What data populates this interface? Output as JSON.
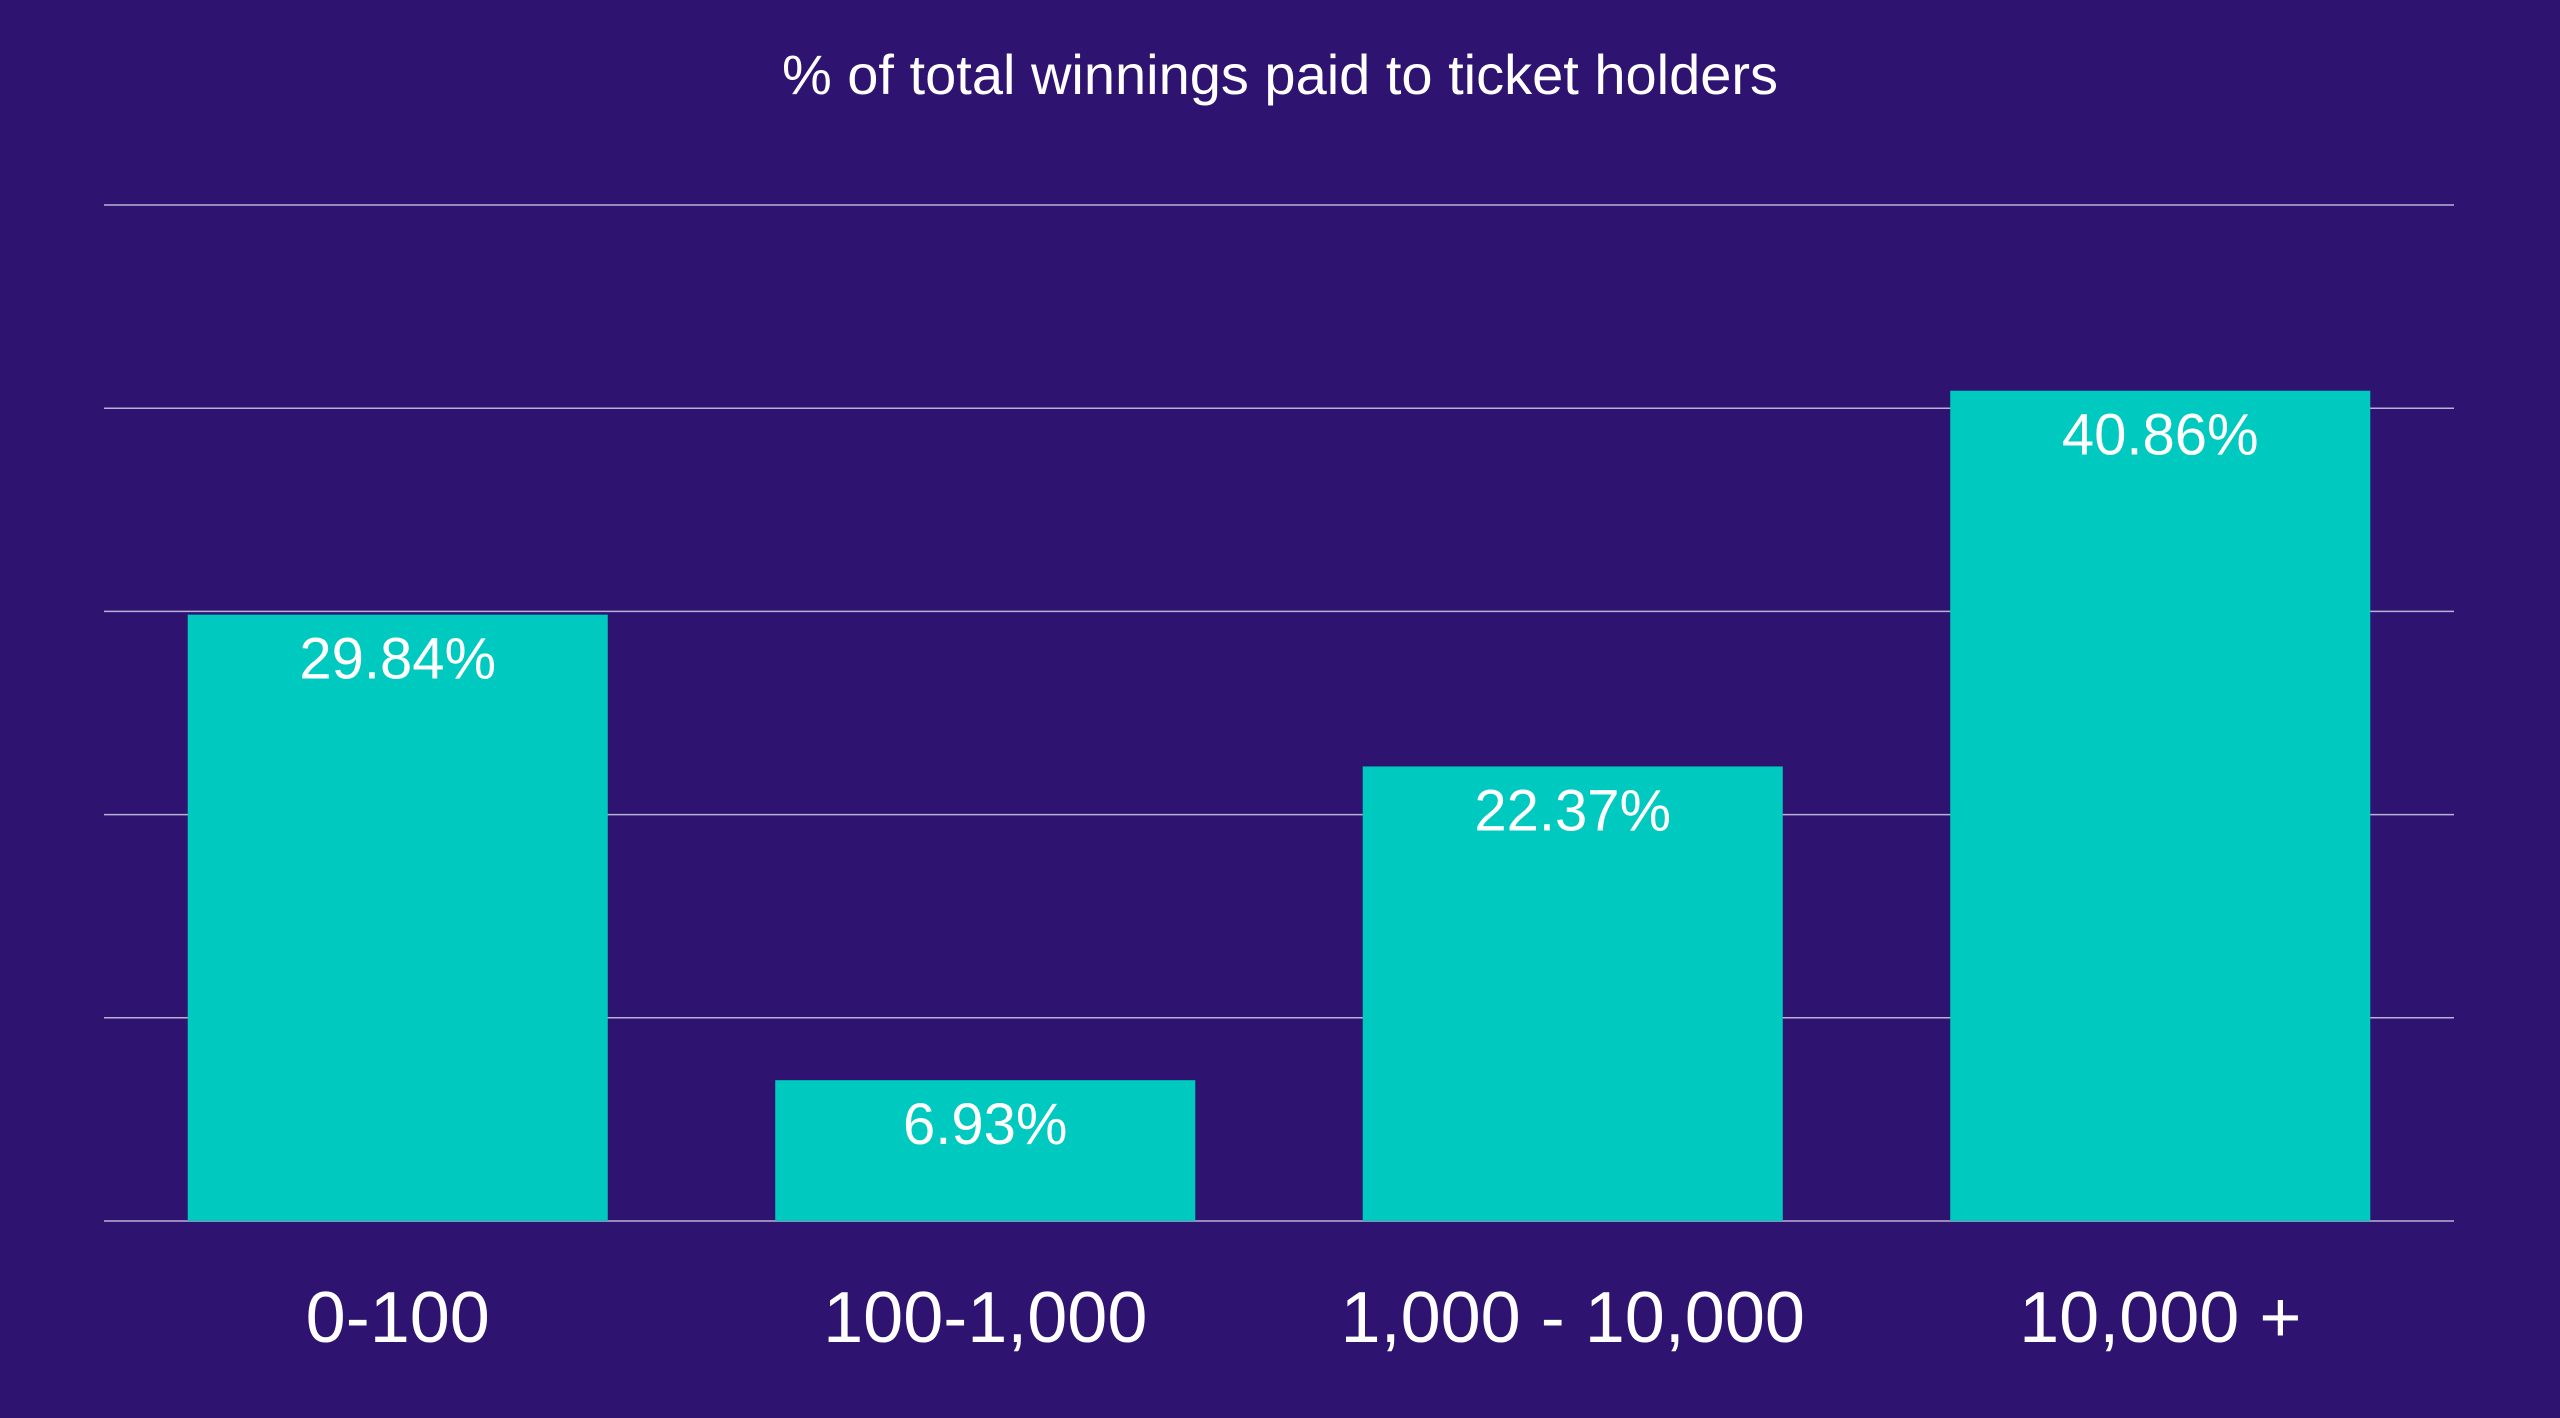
{
  "chart_data": {
    "type": "bar",
    "title": "% of total winnings paid to ticket holders",
    "xlabel": "",
    "ylabel": "",
    "categories": [
      "0-100",
      "100-1,000",
      "1,000 - 10,000",
      "10,000 +"
    ],
    "values": [
      29.84,
      6.93,
      22.37,
      40.86
    ],
    "data_labels": [
      "29.84%",
      "6.93%",
      "22.37%",
      "40.86%"
    ],
    "ylim": [
      0,
      50
    ],
    "grid": true,
    "legend": "none",
    "colors": {
      "background": "#2e1370",
      "bar": "#00c9c0",
      "text": "#ffffff",
      "grid": "#b9b2d6"
    }
  }
}
